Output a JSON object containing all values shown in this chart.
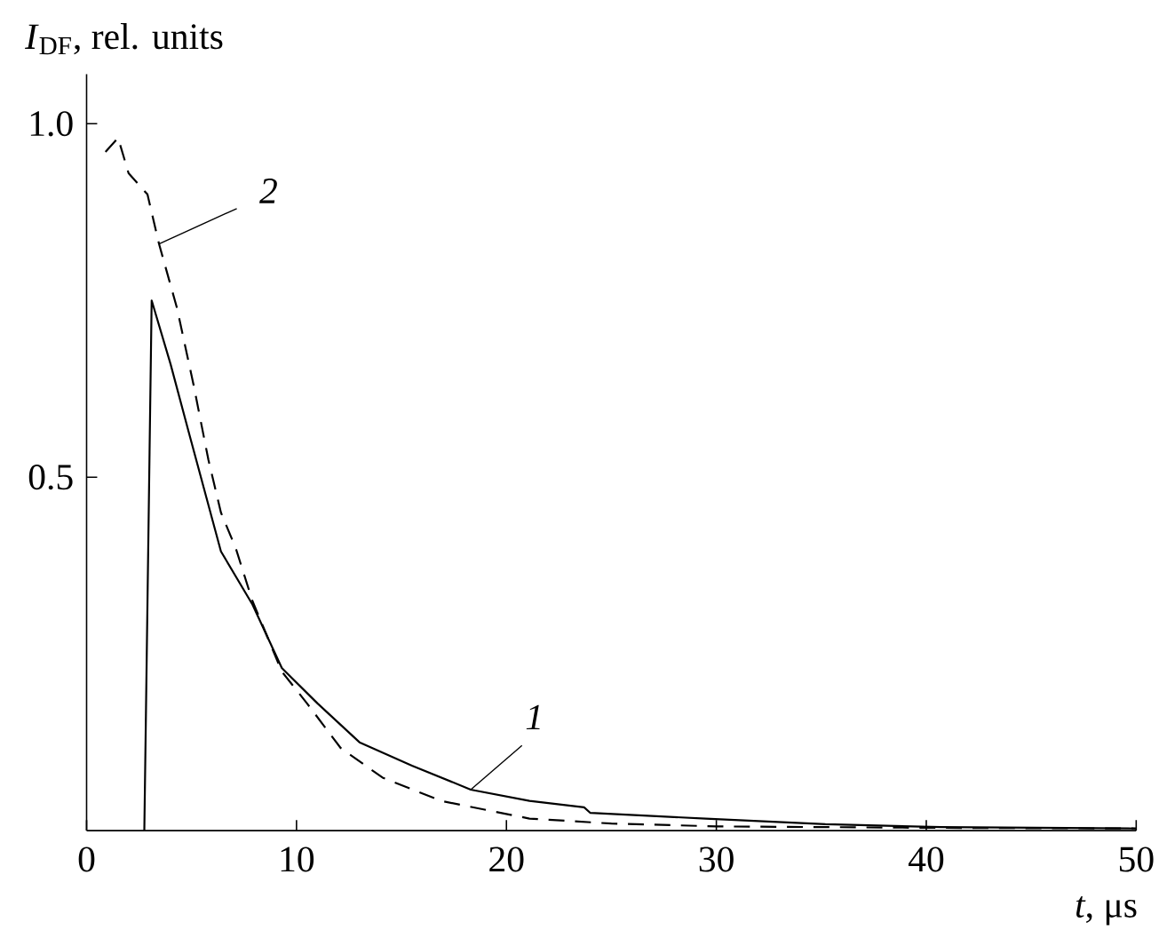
{
  "chart_data": {
    "type": "line",
    "xlabel": "*t*, μs",
    "ylabel": "*I*$_{DF}$, rel. units",
    "xlim": [
      0,
      50
    ],
    "ylim": [
      0,
      1.07
    ],
    "xticks": [
      0,
      10,
      20,
      30,
      40,
      50
    ],
    "yticks": [
      {
        "value": 0.5,
        "label": "0.5"
      },
      {
        "value": 1.0,
        "label": "1.0"
      }
    ],
    "grid": false,
    "legend": false,
    "marker": "none",
    "series": [
      {
        "name": "1",
        "color": "#000000",
        "line_style": "solid",
        "x": [
          2.75,
          3.1,
          4.0,
          4.9,
          6.4,
          7.9,
          9.3,
          11.0,
          13.0,
          15.5,
          18.3,
          21.1,
          23.7,
          24.0,
          29.5,
          35.2,
          40.7,
          50
        ],
        "values": [
          0,
          0.75,
          0.66,
          0.56,
          0.395,
          0.32,
          0.23,
          0.18,
          0.125,
          0.092,
          0.058,
          0.042,
          0.033,
          0.025,
          0.017,
          0.009,
          0.005,
          0.003
        ]
      },
      {
        "name": "2",
        "color": "#000000",
        "line_style": "dashed",
        "x": [
          0.9,
          1.5,
          2.0,
          2.9,
          3.45,
          4.3,
          5.1,
          5.8,
          6.4,
          7.1,
          7.9,
          9.3,
          10.5,
          12.1,
          14.1,
          16.9,
          21.1,
          25,
          30,
          35,
          40,
          50
        ],
        "values": [
          0.96,
          0.98,
          0.93,
          0.9,
          0.83,
          0.74,
          0.63,
          0.525,
          0.45,
          0.4,
          0.325,
          0.225,
          0.18,
          0.117,
          0.075,
          0.042,
          0.017,
          0.01,
          0.006,
          0.005,
          0.004,
          0.003
        ]
      }
    ]
  }
}
